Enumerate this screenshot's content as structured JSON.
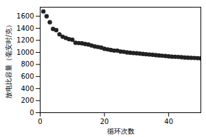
{
  "chart_data": {
    "type": "scatter",
    "x_label": "循环次数",
    "y_label": "放电比容量（毫安时/克）",
    "x": [
      1,
      2,
      3,
      4,
      5,
      6,
      7,
      8,
      9,
      10,
      11,
      12,
      13,
      14,
      15,
      16,
      17,
      18,
      19,
      20,
      21,
      22,
      23,
      24,
      25,
      26,
      27,
      28,
      29,
      30,
      31,
      32,
      33,
      34,
      35,
      36,
      37,
      38,
      39,
      40,
      41,
      42,
      43,
      44,
      45,
      46,
      47,
      48,
      49,
      50
    ],
    "values": [
      1680,
      1600,
      1500,
      1390,
      1370,
      1300,
      1260,
      1240,
      1220,
      1210,
      1160,
      1155,
      1150,
      1140,
      1130,
      1115,
      1100,
      1090,
      1080,
      1060,
      1050,
      1040,
      1030,
      1030,
      1015,
      1010,
      1000,
      995,
      990,
      985,
      980,
      975,
      970,
      965,
      960,
      955,
      950,
      945,
      940,
      935,
      930,
      928,
      925,
      920,
      915,
      912,
      910,
      908,
      905,
      900
    ],
    "color": "#222222",
    "marker": "circle",
    "xlim": [
      0,
      50
    ],
    "xticks": [
      0,
      20,
      40
    ],
    "ylim": [
      0,
      1750
    ],
    "yticks": [
      0,
      200,
      400,
      600,
      800,
      1000,
      1200,
      1400,
      1600
    ],
    "grid": false
  }
}
